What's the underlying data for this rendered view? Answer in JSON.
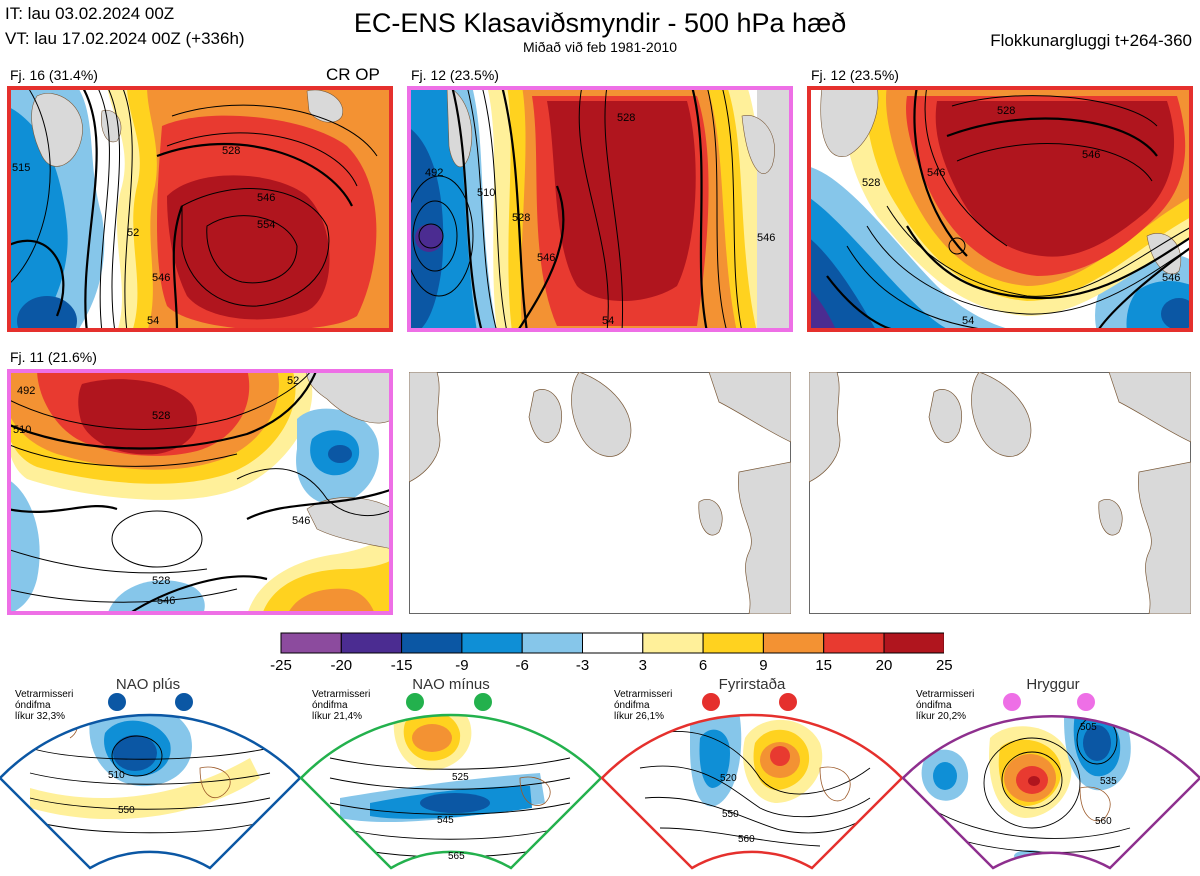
{
  "header": {
    "it_line": "IT: lau 03.02.2024 00Z",
    "vt_line": "VT: lau 17.02.2024 00Z  (+336h)",
    "title": "EC-ENS Klasaviðsmyndir - 500 hPa hæð",
    "subtitle": "Miðað við feb 1981-2010",
    "window_label": "Flokkunargluggi t+264-360"
  },
  "crop_label": "CR OP",
  "clusters": [
    {
      "label": "Fj. 16 (31.4%)",
      "border_color": "#e5302d",
      "regime": "Fyrirstaða"
    },
    {
      "label": "Fj. 12 (23.5%)",
      "border_color": "#ee6fe6",
      "regime": "Hryggur"
    },
    {
      "label": "Fj. 12 (23.5%)",
      "border_color": "#e5302d",
      "regime": "Fyrirstaða"
    },
    {
      "label": "Fj. 11 (21.6%)",
      "border_color": "#ee6fe6",
      "regime": "Hryggur"
    }
  ],
  "contour_labels": {
    "c1": [
      "528",
      "546",
      "554",
      "546",
      "54",
      "515",
      "52"
    ],
    "c2": [
      "492",
      "510",
      "528",
      "546",
      "546",
      "54",
      "528"
    ],
    "c3": [
      "528",
      "546",
      "546",
      "528",
      "546",
      "54"
    ],
    "c4": [
      "492",
      "510",
      "528",
      "546",
      "528",
      "546",
      "52"
    ]
  },
  "colorbar": {
    "ticks": [
      "-25",
      "-20",
      "-15",
      "-9",
      "-6",
      "-3",
      "3",
      "6",
      "9",
      "15",
      "20",
      "25"
    ],
    "colors": [
      "#8c4b9e",
      "#4b2c91",
      "#0b57a4",
      "#0f8fd6",
      "#86c6ea",
      "#ffffff",
      "#fff09a",
      "#ffd21f",
      "#f39233",
      "#e83a30",
      "#b0151e"
    ]
  },
  "regimes": [
    {
      "name": "NAO plús",
      "dot_color": "#0b57a4",
      "arc_color": "#0b57a4",
      "clim_lines": [
        "Vetrarmisseri",
        "óndifma",
        "líkur 32,3%"
      ],
      "contour_labels": [
        "510",
        "550"
      ]
    },
    {
      "name": "NAO mínus",
      "dot_color": "#23b14d",
      "arc_color": "#23b14d",
      "clim_lines": [
        "Vetrarmisseri",
        "óndifma",
        "líkur 21,4%"
      ],
      "contour_labels": [
        "525",
        "545",
        "565"
      ]
    },
    {
      "name": "Fyrirstaða",
      "dot_color": "#e5302d",
      "arc_color": "#e5302d",
      "clim_lines": [
        "Vetrarmisseri",
        "óndifma",
        "líkur 26,1%"
      ],
      "contour_labels": [
        "520",
        "550",
        "560"
      ]
    },
    {
      "name": "Hryggur",
      "dot_color": "#ee6fe6",
      "arc_color": "#8e2f8e",
      "clim_lines": [
        "Vetrarmisseri",
        "óndifma",
        "líkur 20,2%"
      ],
      "contour_labels": [
        "505",
        "535",
        "560"
      ]
    }
  ]
}
